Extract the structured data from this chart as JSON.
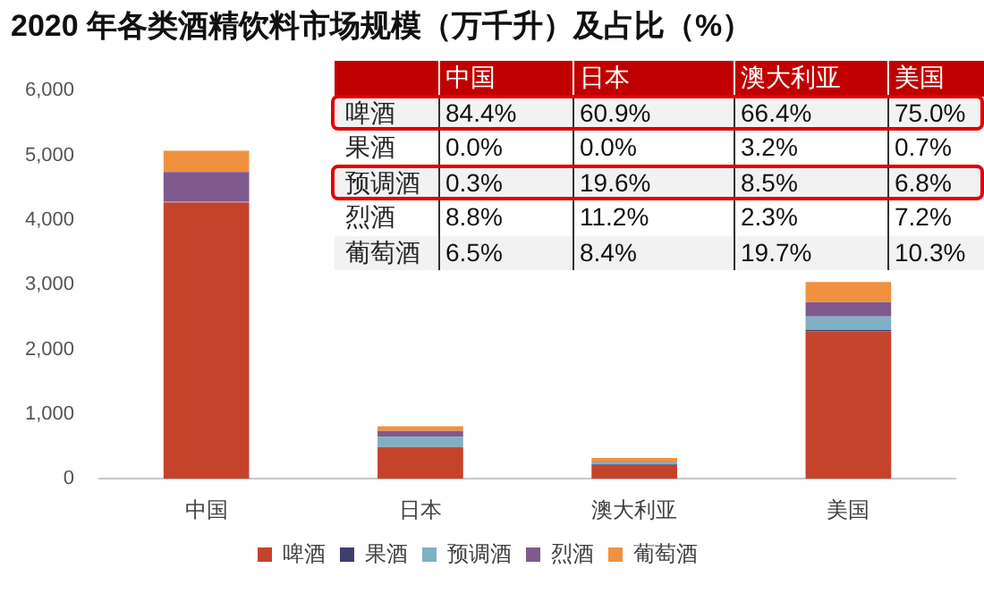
{
  "chart_data": [
    {
      "type": "bar",
      "title": "2020 年各类酒精饮料市场规模（万千升）及占比（%）",
      "categories": [
        "中国",
        "日本",
        "澳大利亚",
        "美国"
      ],
      "stacked": true,
      "ylim": [
        0,
        6000
      ],
      "yticks": [
        {
          "value": 0,
          "label": "0"
        },
        {
          "value": 1000,
          "label": "1,000"
        },
        {
          "value": 2000,
          "label": "2,000"
        },
        {
          "value": 3000,
          "label": "3,000"
        },
        {
          "value": 4000,
          "label": "4,000"
        },
        {
          "value": 5000,
          "label": "5,000"
        },
        {
          "value": 6000,
          "label": "6,000"
        }
      ],
      "grid": false,
      "legend": "bottom",
      "series": [
        {
          "name": "啤酒",
          "color": "#c5432a",
          "values": [
            4270,
            490,
            210,
            2280
          ]
        },
        {
          "name": "果酒",
          "color": "#3f3f6f",
          "values": [
            0,
            0,
            10,
            20
          ]
        },
        {
          "name": "预调酒",
          "color": "#7fb0c4",
          "values": [
            20,
            160,
            30,
            210
          ]
        },
        {
          "name": "烈酒",
          "color": "#7f5a8f",
          "values": [
            450,
            90,
            10,
            220
          ]
        },
        {
          "name": "葡萄酒",
          "color": "#f0913f",
          "values": [
            330,
            70,
            60,
            310
          ]
        }
      ]
    },
    {
      "type": "other",
      "categories": [
        "中国",
        "日本",
        "澳大利亚",
        "美国"
      ],
      "y_categories": [
        "啤酒",
        "果酒",
        "预调酒",
        "烈酒",
        "葡萄酒"
      ],
      "annotations": [
        "84.4%",
        "60.9%",
        "66.4%",
        "75.0%",
        "0.0%",
        "0.0%",
        "3.2%",
        "0.7%",
        "0.3%",
        "19.6%",
        "8.5%",
        "6.8%",
        "8.8%",
        "11.2%",
        "2.3%",
        "7.2%",
        "6.5%",
        "8.4%",
        "19.7%",
        "10.3%"
      ]
    }
  ]
}
